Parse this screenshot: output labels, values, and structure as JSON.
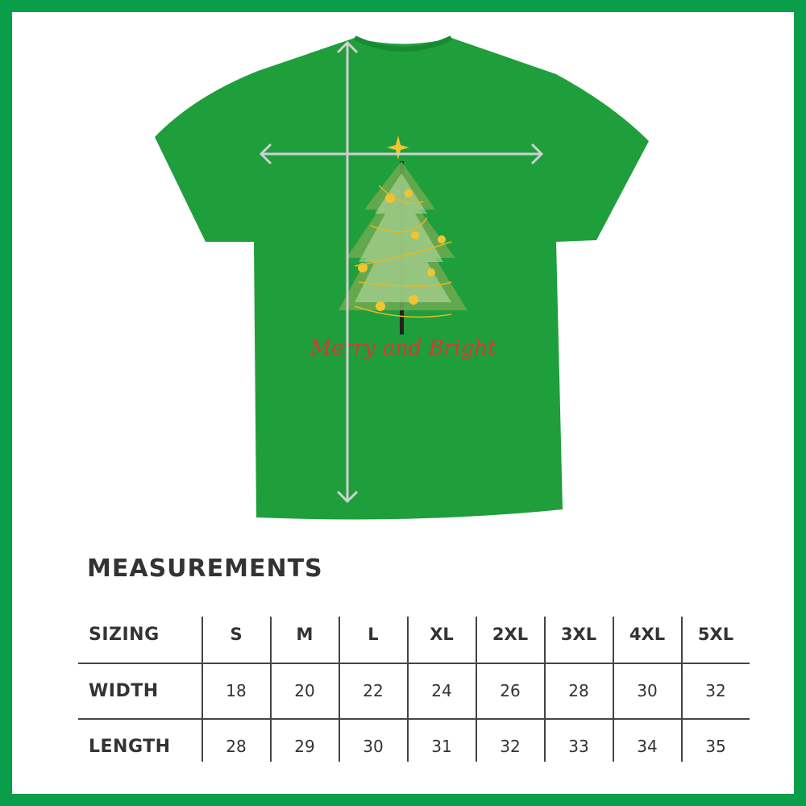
{
  "colors": {
    "frame": "#0a9e4a",
    "shirt": "#1f9e3c",
    "text": "#333333",
    "print_text": "#d43a3a"
  },
  "shirt_print_text": "Merry and Bright",
  "title": "MEASUREMENTS",
  "table": {
    "headers": [
      "SIZING",
      "S",
      "M",
      "L",
      "XL",
      "2XL",
      "3XL",
      "4XL",
      "5XL"
    ],
    "rows": [
      {
        "label": "WIDTH",
        "values": [
          "18",
          "20",
          "22",
          "24",
          "26",
          "28",
          "30",
          "32"
        ]
      },
      {
        "label": "LENGTH",
        "values": [
          "28",
          "29",
          "30",
          "31",
          "32",
          "33",
          "34",
          "35"
        ]
      }
    ]
  }
}
